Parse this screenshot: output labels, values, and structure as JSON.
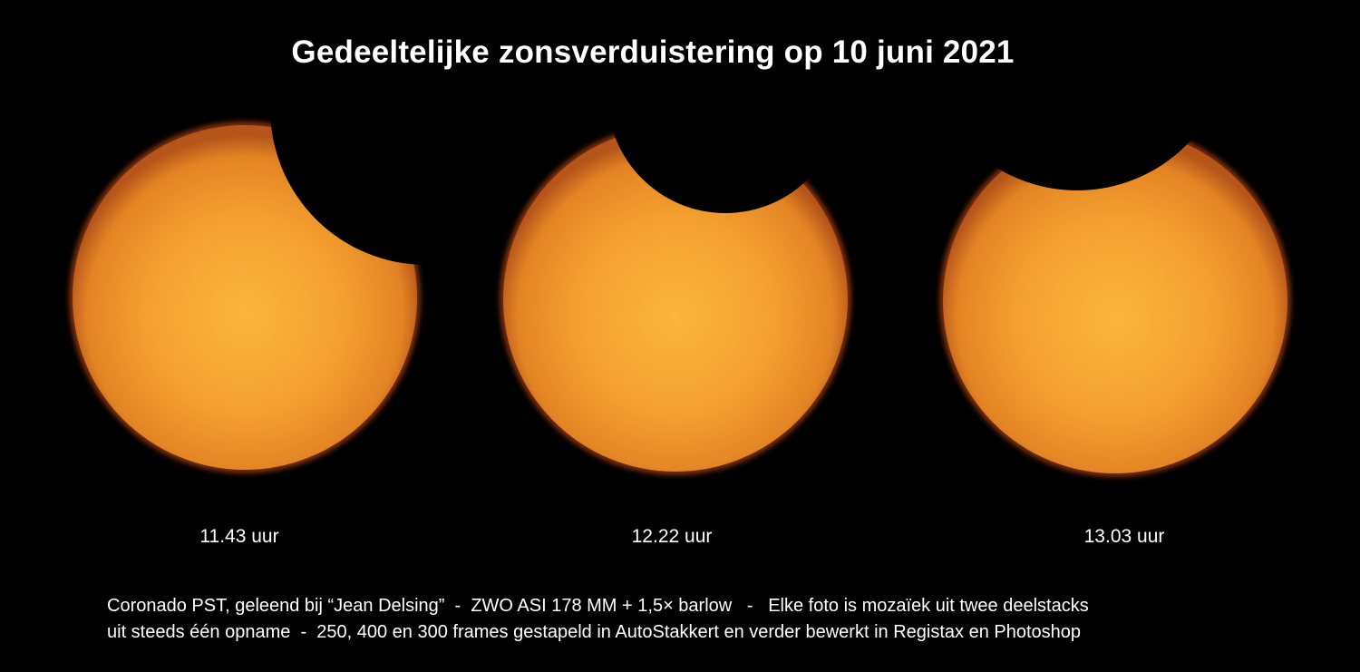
{
  "title": "Gedeeltelijke zonsverduistering op 10 juni 2021",
  "photos": [
    {
      "time_label": "11.43 uur"
    },
    {
      "time_label": "12.22 uur"
    },
    {
      "time_label": "13.03 uur"
    }
  ],
  "caption": {
    "line1": "Coronado PST, geleend bij “Jean Delsing”  -  ZWO ASI 178 MM + 1,5× barlow   -   Elke foto is mozaïek uit twee deelstacks",
    "line2": "uit steeds één opname  -  250, 400 en 300 frames gestapeld in AutoStakkert en verder bewerkt in Registax en Photoshop"
  },
  "colors": {
    "background": "#000000",
    "sun_center": "#f9b23c",
    "sun_mid": "#f29a2b",
    "sun_edge": "#c8601a",
    "text": "#ffffff"
  }
}
